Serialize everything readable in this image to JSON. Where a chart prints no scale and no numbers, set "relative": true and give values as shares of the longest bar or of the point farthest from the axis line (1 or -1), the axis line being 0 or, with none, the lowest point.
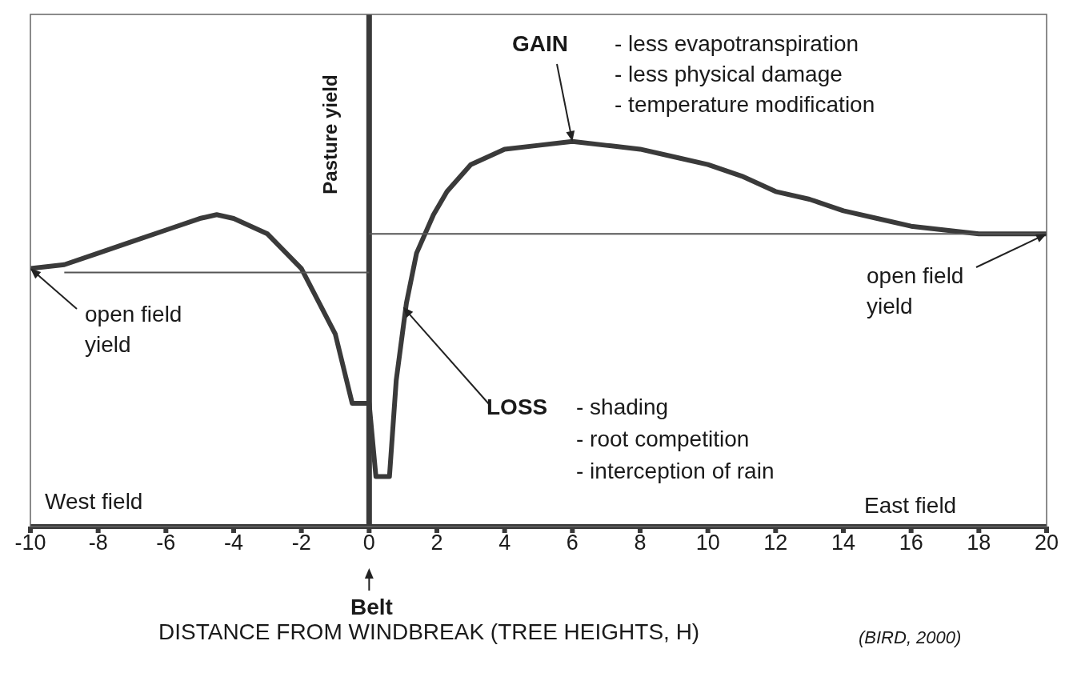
{
  "chart_data": {
    "type": "line",
    "relative": true,
    "xlabel": "DISTANCE FROM WINDBREAK (TREE HEIGHTS, H)",
    "ylabel": "Pasture yield",
    "xlim": [
      -10,
      20
    ],
    "xticks": [
      -10,
      -8,
      -6,
      -4,
      -2,
      0,
      2,
      4,
      6,
      8,
      10,
      12,
      14,
      16,
      18,
      20
    ],
    "series": [
      {
        "color": "#3a3a3a",
        "x": [
          -10,
          -9,
          -8,
          -7,
          -6,
          -5,
          -4.5,
          -4,
          -3,
          -2,
          -1,
          -0.5,
          0,
          0.2,
          0.6,
          0.8,
          1.1,
          1.4,
          1.9,
          2.3,
          3,
          4,
          5,
          6,
          7,
          8,
          9,
          10,
          11,
          12,
          13,
          14,
          15,
          16,
          17,
          18,
          19,
          20
        ],
        "values": [
          0.67,
          0.68,
          0.71,
          0.74,
          0.77,
          0.8,
          0.81,
          0.8,
          0.76,
          0.67,
          0.5,
          0.32,
          0.32,
          0.13,
          0.13,
          0.38,
          0.58,
          0.71,
          0.81,
          0.87,
          0.94,
          0.98,
          0.99,
          1,
          0.99,
          0.98,
          0.96,
          0.94,
          0.91,
          0.87,
          0.85,
          0.82,
          0.8,
          0.78,
          0.77,
          0.76,
          0.76,
          0.76
        ]
      },
      {
        "color": "#555555",
        "x": [
          -9,
          0
        ],
        "values": [
          0.66,
          0.66
        ]
      },
      {
        "color": "#555555",
        "x": [
          0,
          20
        ],
        "values": [
          0.76,
          0.76
        ]
      }
    ],
    "ref_lines": [
      {
        "axis": "x",
        "value": 0,
        "color": "#3a3a3a"
      }
    ],
    "annotations": [
      {
        "text": "GAIN",
        "x": 6,
        "y": 1
      },
      "- less evapotranspiration",
      "- less physical damage",
      "- temperature modification",
      {
        "text": "LOSS",
        "x": 1,
        "y": 0.57
      },
      "- shading",
      "- root competition",
      "- interception of rain",
      {
        "text": "open field yield",
        "x": -10,
        "y": 0.67
      },
      {
        "text": "open field yield",
        "x": 20,
        "y": 0.76
      },
      "West field",
      "East field",
      "Belt",
      "(BIRD, 2000)"
    ]
  }
}
